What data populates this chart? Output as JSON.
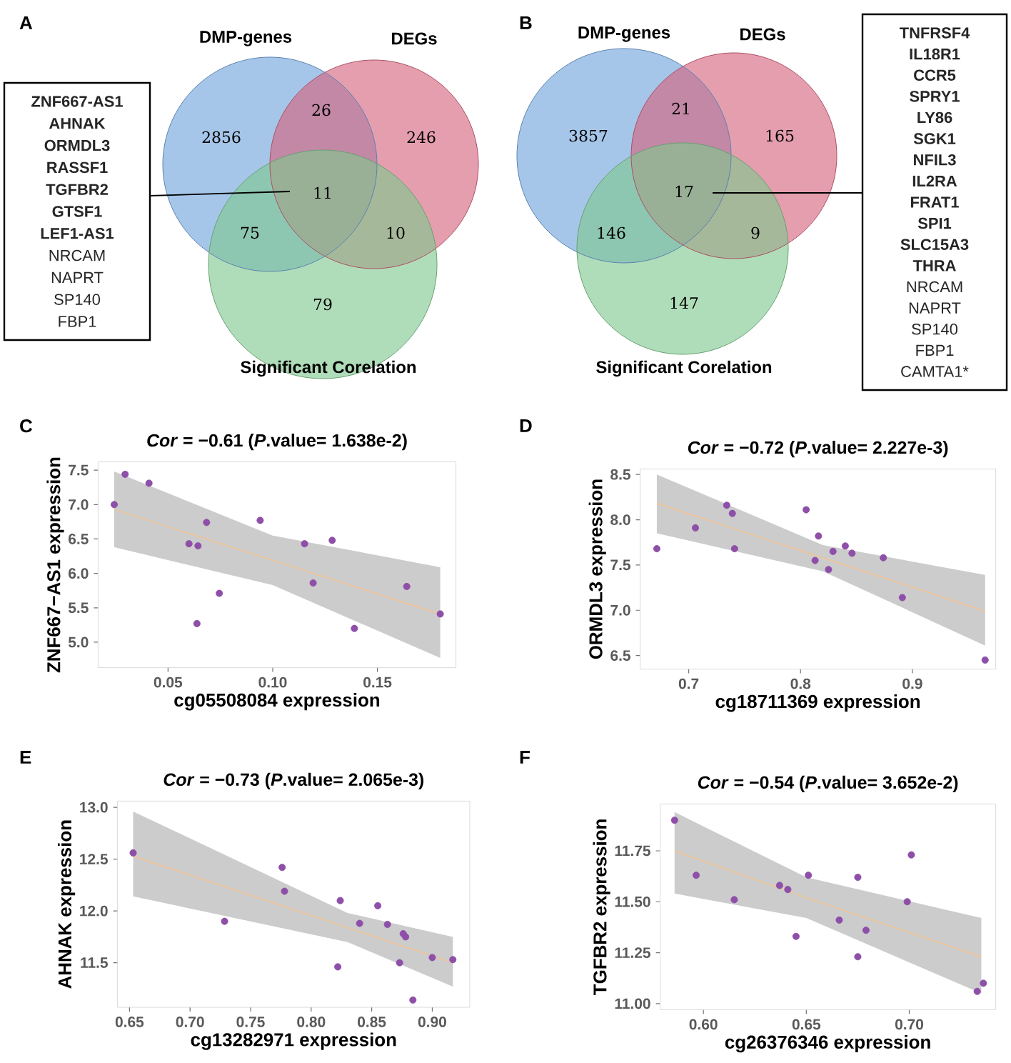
{
  "chart_data": [
    {
      "type": "other",
      "title": "A",
      "categories": [
        "DMP-genes",
        "DEGs",
        "Significant Corelation"
      ],
      "colors": [
        "#6fa3dc",
        "#d5627c",
        "#7fc88e"
      ],
      "annotations": [
        "2856",
        "26",
        "246",
        "11",
        "75",
        "10",
        "79",
        "**ZNF667-AS1**",
        "**AHNAK**",
        "**ORMDL3**",
        "**RASSF1**",
        "**TGFBR2**",
        "**GTSF1**",
        "**LEF1-AS1**",
        "NRCAM",
        "NAPRT",
        "SP140",
        "FBP1"
      ]
    },
    {
      "type": "other",
      "title": "B",
      "categories": [
        "DMP-genes",
        "DEGs",
        "Significant Corelation"
      ],
      "colors": [
        "#6fa3dc",
        "#d5627c",
        "#7fc88e"
      ],
      "annotations": [
        "3857",
        "21",
        "165",
        "17",
        "146",
        "9",
        "147",
        "**TNFRSF4**",
        "**IL18R1**",
        "**CCR5**",
        "**SPRY1**",
        "**LY86**",
        "**SGK1**",
        "**NFIL3**",
        "**IL2RA**",
        "**FRAT1**",
        "**SPI1**",
        "**SLC15A3**",
        "**THRA**",
        "NRCAM",
        "NAPRT",
        "SP140",
        "FBP1",
        "CAMTA1*"
      ]
    },
    {
      "type": "scatter",
      "title": "C",
      "subtitle": "*Cor* = −0.61 (*P*.value= 1.638e-2)",
      "xlabel": "cg05508084 expression",
      "ylabel": "ZNF667−AS1 expression",
      "xlim": [
        0.0166,
        0.1875
      ],
      "ylim": [
        4.63,
        7.62
      ],
      "xticks": [
        0.05,
        {
          "value": 0.1,
          "label": "0.10"
        },
        0.15
      ],
      "yticks": [
        {
          "value": 5,
          "label": "5.0"
        },
        5.5,
        {
          "value": 6,
          "label": "6.0"
        },
        6.5,
        {
          "value": 7,
          "label": "7.0"
        },
        7.5
      ],
      "series": [
        {
          "type": "scatter",
          "marker": "circle",
          "color": "#8e4fa8",
          "x": [
            0.0243,
            0.0295,
            0.0409,
            0.06,
            0.0643,
            0.0684,
            0.0638,
            0.0745,
            0.094,
            0.1152,
            0.1284,
            0.1193,
            0.139,
            0.164,
            0.18
          ],
          "values": [
            7.0,
            7.44,
            7.31,
            6.43,
            6.4,
            6.74,
            5.27,
            5.71,
            6.77,
            6.43,
            6.48,
            5.86,
            5.2,
            5.81,
            5.41
          ]
        },
        {
          "type": "line",
          "color": "#f4c28e",
          "x": [
            0.0243,
            0.1,
            0.18
          ],
          "values": [
            6.93,
            6.19,
            5.41
          ],
          "lower": [
            6.38,
            5.83,
            4.77
          ],
          "upper": [
            7.48,
            6.55,
            6.09
          ]
        }
      ]
    },
    {
      "type": "scatter",
      "title": "D",
      "subtitle": "*Cor* = −0.72 (*P*.value= 2.227e-3)",
      "xlabel": "cg18711369 expression",
      "ylabel": "ORMDL3 expression",
      "xlim": [
        0.6566,
        0.9745
      ],
      "ylim": [
        6.35,
        8.56
      ],
      "xticks": [
        0.7,
        0.8,
        0.9
      ],
      "yticks": [
        6.5,
        {
          "value": 7,
          "label": "7.0"
        },
        7.5,
        {
          "value": 8,
          "label": "8.0"
        },
        8.5
      ],
      "series": [
        {
          "type": "scatter",
          "marker": "circle",
          "color": "#8e4fa8",
          "x": [
            0.6715,
            0.706,
            0.734,
            0.739,
            0.741,
            0.805,
            0.816,
            0.813,
            0.825,
            0.829,
            0.84,
            0.846,
            0.874,
            0.891,
            0.965
          ],
          "values": [
            7.68,
            7.91,
            8.16,
            8.07,
            7.68,
            8.11,
            7.82,
            7.55,
            7.45,
            7.65,
            7.71,
            7.63,
            7.58,
            7.14,
            6.45
          ]
        },
        {
          "type": "line",
          "color": "#f4c28e",
          "x": [
            0.6715,
            0.82,
            0.965
          ],
          "values": [
            8.18,
            7.58,
            6.99
          ],
          "lower": [
            7.85,
            7.43,
            6.61
          ],
          "upper": [
            8.5,
            7.72,
            7.39
          ]
        }
      ]
    },
    {
      "type": "scatter",
      "title": "E",
      "subtitle": "*Cor* = −0.73 (*P*.value= 2.065e-3)",
      "xlabel": "cg13282971 expression",
      "ylabel": "AHNAK expression",
      "xlim": [
        0.6401,
        0.931
      ],
      "ylim": [
        11.07,
        13.06
      ],
      "xticks": [
        0.65,
        {
          "value": 0.7,
          "label": "0.70"
        },
        0.75,
        {
          "value": 0.8,
          "label": "0.80"
        },
        0.85,
        {
          "value": 0.9,
          "label": "0.90"
        }
      ],
      "yticks": [
        11.5,
        {
          "value": 12,
          "label": "12.0"
        },
        12.5,
        {
          "value": 13,
          "label": "13.0"
        }
      ],
      "series": [
        {
          "type": "scatter",
          "marker": "circle",
          "color": "#8e4fa8",
          "x": [
            0.653,
            0.7285,
            0.776,
            0.778,
            0.824,
            0.822,
            0.84,
            0.855,
            0.863,
            0.876,
            0.878,
            0.873,
            0.884,
            0.9,
            0.917
          ],
          "values": [
            12.56,
            11.9,
            12.42,
            12.19,
            12.1,
            11.46,
            11.88,
            12.05,
            11.87,
            11.78,
            11.75,
            11.5,
            11.14,
            11.55,
            11.53
          ]
        },
        {
          "type": "line",
          "color": "#f4c28e",
          "x": [
            0.653,
            0.83,
            0.917
          ],
          "values": [
            12.53,
            11.84,
            11.5
          ],
          "lower": [
            12.14,
            11.7,
            11.27
          ],
          "upper": [
            12.96,
            11.98,
            11.75
          ]
        }
      ]
    },
    {
      "type": "scatter",
      "title": "F",
      "subtitle": "*Cor* = −0.54 (*P*.value= 3.652e-2)",
      "xlabel": "cg26376346 expression",
      "ylabel": "TGFBR2 expression",
      "xlim": [
        0.579,
        0.742
      ],
      "ylim": [
        10.97,
        11.98
      ],
      "xticks": [
        {
          "value": 0.6,
          "label": "0.60"
        },
        0.65,
        {
          "value": 0.7,
          "label": "0.70"
        }
      ],
      "yticks": [
        {
          "value": 11,
          "label": "11.00"
        },
        11.25,
        {
          "value": 11.5,
          "label": "11.50"
        },
        11.75
      ],
      "series": [
        {
          "type": "scatter",
          "marker": "circle",
          "color": "#8e4fa8",
          "x": [
            0.586,
            0.5965,
            0.615,
            0.637,
            0.641,
            0.651,
            0.645,
            0.666,
            0.675,
            0.675,
            0.679,
            0.699,
            0.701,
            0.733,
            0.736
          ],
          "values": [
            11.9,
            11.63,
            11.51,
            11.58,
            11.56,
            11.63,
            11.33,
            11.41,
            11.62,
            11.23,
            11.36,
            11.5,
            11.73,
            11.06,
            11.1
          ]
        },
        {
          "type": "line",
          "color": "#f4c28e",
          "x": [
            0.586,
            0.65,
            0.735
          ],
          "values": [
            11.75,
            11.52,
            11.23
          ],
          "lower": [
            11.54,
            11.42,
            11.05
          ],
          "upper": [
            11.94,
            11.62,
            11.42
          ]
        }
      ]
    }
  ]
}
